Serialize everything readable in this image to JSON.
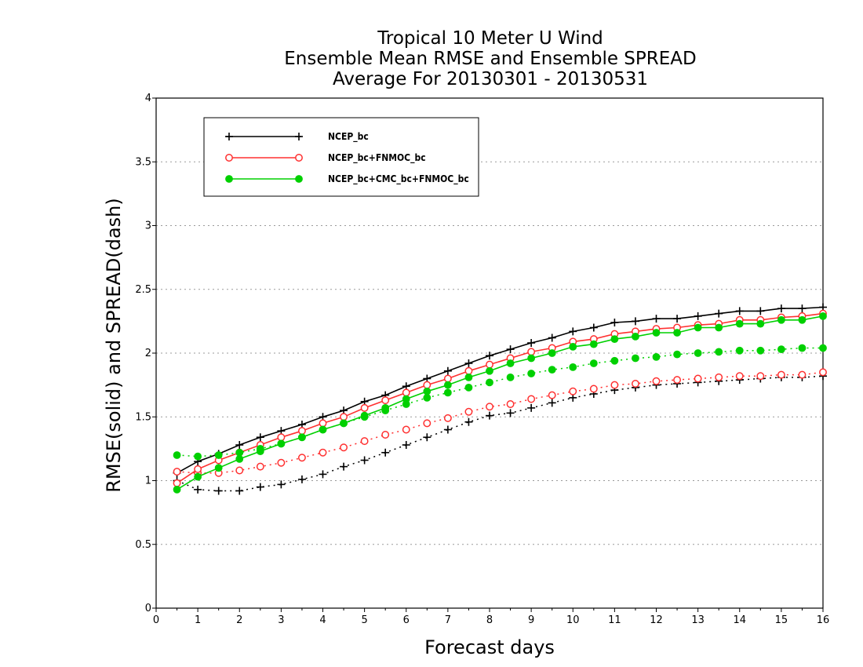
{
  "chart_data": {
    "type": "line",
    "title_lines": [
      "Tropical 10 Meter U Wind",
      "Ensemble Mean RMSE and Ensemble SPREAD",
      "Average For 20130301 - 20130531"
    ],
    "xlabel": "Forecast days",
    "ylabel": "RMSE(solid) and SPREAD(dash)",
    "xlim": [
      0,
      16
    ],
    "ylim": [
      0,
      4
    ],
    "x_ticks": [
      "0",
      "1",
      "2",
      "3",
      "4",
      "5",
      "6",
      "7",
      "8",
      "9",
      "10",
      "11",
      "12",
      "13",
      "14",
      "15",
      "16"
    ],
    "y_ticks": [
      "0",
      "0.5",
      "1",
      "1.5",
      "2",
      "2.5",
      "3",
      "3.5",
      "4"
    ],
    "grid": "horizontal dotted",
    "legend_position": "top-left",
    "x": [
      0.5,
      1,
      1.5,
      2,
      2.5,
      3,
      3.5,
      4,
      4.5,
      5,
      5.5,
      6,
      6.5,
      7,
      7.5,
      8,
      8.5,
      9,
      9.5,
      10,
      10.5,
      11,
      11.5,
      12,
      12.5,
      13,
      13.5,
      14,
      14.5,
      15,
      15.5,
      16
    ],
    "series": [
      {
        "name": "NCEP_bc",
        "color": "#000000",
        "marker": "plus",
        "rmse": [
          1.06,
          1.15,
          1.21,
          1.28,
          1.34,
          1.39,
          1.44,
          1.5,
          1.55,
          1.62,
          1.67,
          1.74,
          1.8,
          1.86,
          1.92,
          1.98,
          2.03,
          2.08,
          2.12,
          2.17,
          2.2,
          2.24,
          2.25,
          2.27,
          2.27,
          2.29,
          2.31,
          2.33,
          2.33,
          2.35,
          2.35,
          2.36
        ],
        "spread": [
          1.0,
          0.93,
          0.92,
          0.92,
          0.95,
          0.97,
          1.01,
          1.05,
          1.11,
          1.16,
          1.22,
          1.28,
          1.34,
          1.4,
          1.46,
          1.51,
          1.53,
          1.57,
          1.61,
          1.65,
          1.68,
          1.71,
          1.73,
          1.75,
          1.76,
          1.77,
          1.78,
          1.79,
          1.8,
          1.81,
          1.81,
          1.82
        ]
      },
      {
        "name": "NCEP_bc+FNMOC_bc",
        "color": "#ff3030",
        "marker": "open-circle",
        "rmse": [
          0.98,
          1.09,
          1.16,
          1.22,
          1.28,
          1.34,
          1.39,
          1.45,
          1.5,
          1.57,
          1.63,
          1.69,
          1.75,
          1.8,
          1.86,
          1.91,
          1.96,
          2.01,
          2.04,
          2.09,
          2.11,
          2.15,
          2.17,
          2.19,
          2.2,
          2.22,
          2.23,
          2.26,
          2.26,
          2.28,
          2.29,
          2.31
        ],
        "spread": [
          1.07,
          1.06,
          1.06,
          1.08,
          1.11,
          1.14,
          1.18,
          1.22,
          1.26,
          1.31,
          1.36,
          1.4,
          1.45,
          1.49,
          1.54,
          1.58,
          1.6,
          1.64,
          1.67,
          1.7,
          1.72,
          1.75,
          1.76,
          1.78,
          1.79,
          1.8,
          1.81,
          1.82,
          1.82,
          1.83,
          1.83,
          1.85
        ]
      },
      {
        "name": "NCEP_bc+CMC_bc+FNMOC_bc",
        "color": "#00d000",
        "marker": "filled-circle",
        "rmse": [
          0.93,
          1.03,
          1.1,
          1.17,
          1.23,
          1.29,
          1.34,
          1.4,
          1.45,
          1.51,
          1.57,
          1.64,
          1.7,
          1.75,
          1.81,
          1.86,
          1.92,
          1.96,
          2.0,
          2.05,
          2.07,
          2.11,
          2.13,
          2.16,
          2.16,
          2.2,
          2.2,
          2.23,
          2.23,
          2.26,
          2.26,
          2.29
        ],
        "spread": [
          1.2,
          1.19,
          1.2,
          1.22,
          1.25,
          1.29,
          1.34,
          1.4,
          1.45,
          1.5,
          1.55,
          1.6,
          1.65,
          1.69,
          1.73,
          1.77,
          1.81,
          1.84,
          1.87,
          1.89,
          1.92,
          1.94,
          1.96,
          1.97,
          1.99,
          2.0,
          2.01,
          2.02,
          2.02,
          2.03,
          2.04,
          2.04
        ]
      }
    ]
  }
}
